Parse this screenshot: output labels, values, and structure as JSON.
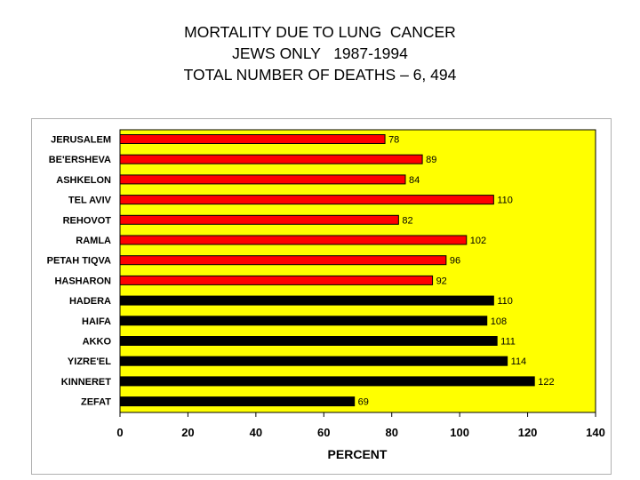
{
  "chart_data": {
    "type": "bar",
    "orientation": "horizontal",
    "title_lines": [
      "MORTALITY DUE TO LUNG  CANCER",
      "JEWS ONLY   1987-1994",
      "TOTAL NUMBER OF DEATHS – 6, 494"
    ],
    "categories": [
      "JERUSALEM",
      "BE'ERSHEVA",
      "ASHKELON",
      "TEL AVIV",
      "REHOVOT",
      "RAMLA",
      "PETAH TIQVA",
      "HASHARON",
      "HADERA",
      "HAIFA",
      "AKKO",
      "YIZRE'EL",
      "KINNERET",
      "ZEFAT"
    ],
    "values": [
      78,
      89,
      84,
      110,
      82,
      102,
      96,
      92,
      110,
      108,
      111,
      114,
      122,
      69
    ],
    "bar_colors": [
      "#ff0000",
      "#ff0000",
      "#ff0000",
      "#ff0000",
      "#ff0000",
      "#ff0000",
      "#ff0000",
      "#ff0000",
      "#000000",
      "#000000",
      "#000000",
      "#000000",
      "#000000",
      "#000000"
    ],
    "xlabel": "PERCENT",
    "ylabel": "",
    "xlim": [
      0,
      140
    ],
    "xticks": [
      0,
      20,
      40,
      60,
      80,
      100,
      120,
      140
    ],
    "plot_background": "#ffff00",
    "grid": false,
    "legend": false
  }
}
